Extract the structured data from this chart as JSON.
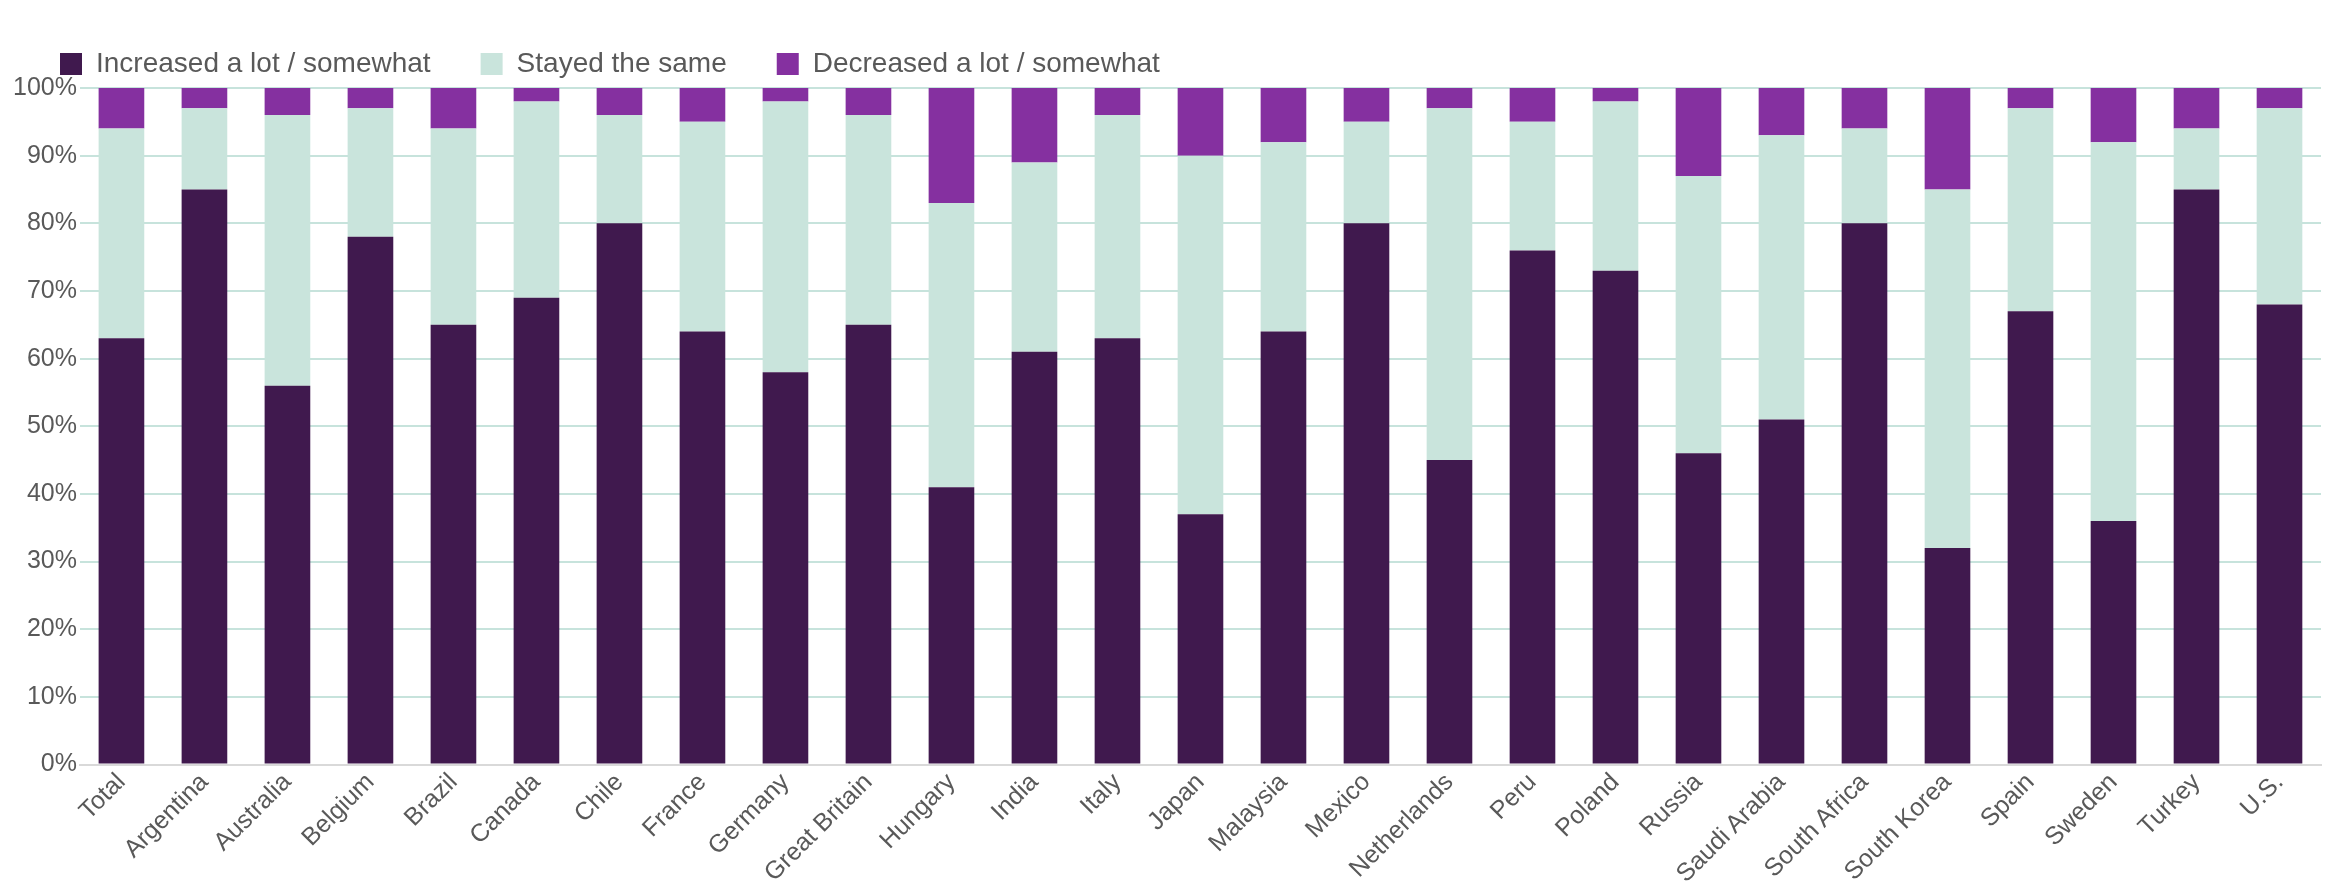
{
  "chart_data": {
    "type": "bar",
    "stacked": true,
    "legend": "top left",
    "grid": "y",
    "categories": [
      "Total",
      "Argentina",
      "Australia",
      "Belgium",
      "Brazil",
      "Canada",
      "Chile",
      "France",
      "Germany",
      "Great Britain",
      "Hungary",
      "India",
      "Italy",
      "Japan",
      "Malaysia",
      "Mexico",
      "Netherlands",
      "Peru",
      "Poland",
      "Russia",
      "Saudi Arabia",
      "South Africa",
      "South Korea",
      "Spain",
      "Sweden",
      "Turkey",
      "U.S."
    ],
    "series": [
      {
        "name": "Increased a lot / somewhat",
        "color": "#40194e",
        "values": [
          63,
          85,
          56,
          78,
          65,
          69,
          80,
          64,
          58,
          65,
          41,
          61,
          63,
          37,
          64,
          80,
          45,
          76,
          73,
          46,
          51,
          80,
          32,
          67,
          36,
          85,
          68
        ]
      },
      {
        "name": "Stayed the same",
        "color": "#c9e4dc",
        "values": [
          31,
          12,
          40,
          19,
          29,
          29,
          16,
          31,
          40,
          31,
          42,
          28,
          33,
          53,
          28,
          15,
          52,
          19,
          25,
          41,
          42,
          14,
          53,
          30,
          56,
          9,
          29
        ]
      },
      {
        "name": "Decreased a lot / somewhat",
        "color": "#8530a0",
        "values": [
          6,
          3,
          4,
          3,
          6,
          2,
          4,
          5,
          2,
          4,
          17,
          11,
          4,
          10,
          8,
          5,
          3,
          5,
          2,
          13,
          7,
          6,
          15,
          3,
          8,
          6,
          3
        ]
      }
    ],
    "ylim": [
      0,
      100
    ],
    "yticks": [
      {
        "value": 0,
        "label": "0%"
      },
      {
        "value": 10,
        "label": "10%"
      },
      {
        "value": 20,
        "label": "20%"
      },
      {
        "value": 30,
        "label": "30%"
      },
      {
        "value": 40,
        "label": "40%"
      },
      {
        "value": 50,
        "label": "50%"
      },
      {
        "value": 60,
        "label": "60%"
      },
      {
        "value": 70,
        "label": "70%"
      },
      {
        "value": 80,
        "label": "80%"
      },
      {
        "value": 90,
        "label": "90%"
      },
      {
        "value": 100,
        "label": "100%"
      }
    ]
  }
}
